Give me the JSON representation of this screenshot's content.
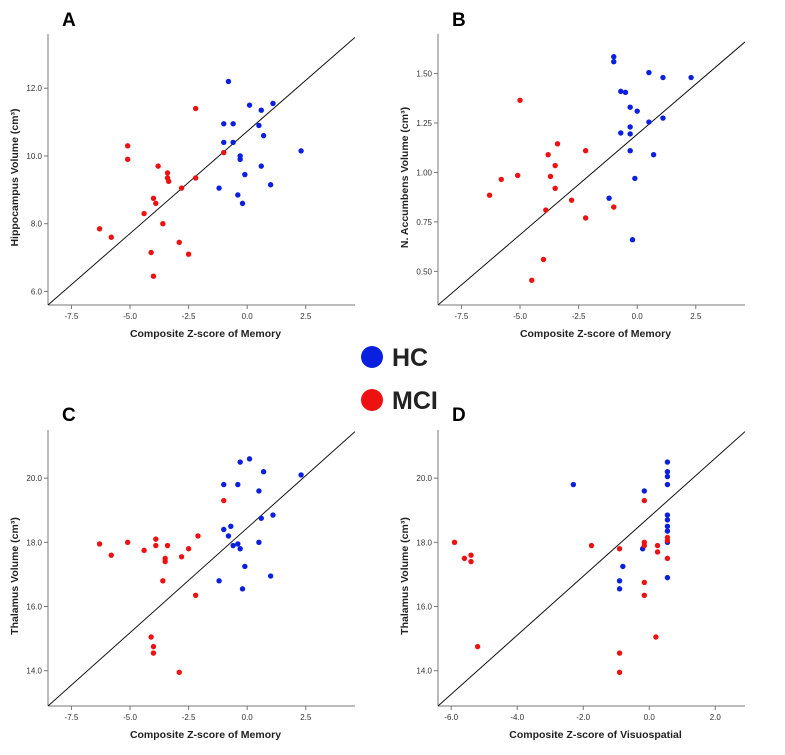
{
  "legend": {
    "items": [
      {
        "label": "HC",
        "color": "#0b1fe0"
      },
      {
        "label": "MCI",
        "color": "#ee1111"
      }
    ]
  },
  "chart_data": [
    {
      "panel": "A",
      "type": "scatter",
      "xlabel": "Composite Z-score of Memory",
      "ylabel": "Hippocampus Volume (cm³)",
      "xlim": [
        -8.5,
        4.6
      ],
      "ylim": [
        5.6,
        13.6
      ],
      "xticks": [
        -7.5,
        -5.0,
        -2.5,
        0.0,
        2.5
      ],
      "xtick_labels": [
        "-7.5",
        "-5.0",
        "-2.5",
        "0.0",
        "2.5"
      ],
      "yticks": [
        6.0,
        8.0,
        10.0,
        12.0
      ],
      "ytick_labels": [
        "6.0",
        "8.0",
        "10.0",
        "12.0"
      ],
      "ref_line": [
        [
          -8.5,
          5.6
        ],
        [
          4.6,
          13.5
        ]
      ],
      "series": [
        {
          "name": "HC",
          "points": [
            [
              -0.8,
              12.2
            ],
            [
              -1.0,
              10.95
            ],
            [
              -0.6,
              10.95
            ],
            [
              0.1,
              11.5
            ],
            [
              1.1,
              11.55
            ],
            [
              0.6,
              11.35
            ],
            [
              0.5,
              10.9
            ],
            [
              0.7,
              10.6
            ],
            [
              -1.0,
              10.4
            ],
            [
              -0.6,
              10.4
            ],
            [
              -0.3,
              10.0
            ],
            [
              -0.3,
              9.9
            ],
            [
              2.3,
              10.15
            ],
            [
              0.6,
              9.7
            ],
            [
              -0.1,
              9.45
            ],
            [
              1.0,
              9.15
            ],
            [
              -1.2,
              9.05
            ],
            [
              -0.4,
              8.85
            ],
            [
              -0.2,
              8.6
            ]
          ]
        },
        {
          "name": "MCI",
          "points": [
            [
              -2.2,
              11.4
            ],
            [
              -1.0,
              10.1
            ],
            [
              -5.1,
              10.3
            ],
            [
              -5.1,
              9.9
            ],
            [
              -3.8,
              9.7
            ],
            [
              -3.4,
              9.5
            ],
            [
              -3.4,
              9.35
            ],
            [
              -3.35,
              9.25
            ],
            [
              -2.2,
              9.35
            ],
            [
              -2.8,
              9.05
            ],
            [
              -4.0,
              8.75
            ],
            [
              -3.9,
              8.6
            ],
            [
              -4.4,
              8.3
            ],
            [
              -3.6,
              8.0
            ],
            [
              -6.3,
              7.85
            ],
            [
              -5.8,
              7.6
            ],
            [
              -2.9,
              7.45
            ],
            [
              -4.1,
              7.15
            ],
            [
              -2.5,
              7.1
            ],
            [
              -4.0,
              6.45
            ]
          ]
        }
      ]
    },
    {
      "panel": "B",
      "type": "scatter",
      "xlabel": "Composite Z-score of Memory",
      "ylabel": "N. Accumbens Volume (cm³)",
      "xlim": [
        -8.5,
        4.6
      ],
      "ylim": [
        0.33,
        1.7
      ],
      "xticks": [
        -7.5,
        -5.0,
        -2.5,
        0.0,
        2.5
      ],
      "xtick_labels": [
        "-7.5",
        "-5.0",
        "-2.5",
        "0.0",
        "2.5"
      ],
      "yticks": [
        0.5,
        0.75,
        1.0,
        1.25,
        1.5
      ],
      "ytick_labels": [
        "0.50",
        "0.75",
        "1.00",
        "1.25",
        "1.50"
      ],
      "ref_line": [
        [
          -8.5,
          0.33
        ],
        [
          4.6,
          1.66
        ]
      ],
      "series": [
        {
          "name": "HC",
          "points": [
            [
              -1.0,
              1.585
            ],
            [
              -1.0,
              1.56
            ],
            [
              0.5,
              1.505
            ],
            [
              1.1,
              1.48
            ],
            [
              2.3,
              1.48
            ],
            [
              -0.7,
              1.41
            ],
            [
              -0.5,
              1.405
            ],
            [
              -0.3,
              1.33
            ],
            [
              0.0,
              1.31
            ],
            [
              1.1,
              1.275
            ],
            [
              0.5,
              1.255
            ],
            [
              -0.3,
              1.23
            ],
            [
              -0.7,
              1.2
            ],
            [
              -0.3,
              1.195
            ],
            [
              -0.3,
              1.11
            ],
            [
              0.7,
              1.09
            ],
            [
              -0.1,
              0.97
            ],
            [
              -1.2,
              0.87
            ],
            [
              -0.2,
              0.66
            ]
          ]
        },
        {
          "name": "MCI",
          "points": [
            [
              -5.0,
              1.365
            ],
            [
              -3.4,
              1.145
            ],
            [
              -3.8,
              1.09
            ],
            [
              -2.2,
              1.11
            ],
            [
              -3.5,
              1.035
            ],
            [
              -3.7,
              0.98
            ],
            [
              -5.1,
              0.985
            ],
            [
              -5.8,
              0.965
            ],
            [
              -3.5,
              0.92
            ],
            [
              -6.3,
              0.885
            ],
            [
              -2.8,
              0.86
            ],
            [
              -1.0,
              0.825
            ],
            [
              -3.9,
              0.81
            ],
            [
              -2.2,
              0.77
            ],
            [
              -4.0,
              0.56
            ],
            [
              -4.5,
              0.455
            ]
          ]
        }
      ]
    },
    {
      "panel": "C",
      "type": "scatter",
      "xlabel": "Composite Z-score of Memory",
      "ylabel": "Thalamus Volume (cm³)",
      "xlim": [
        -8.5,
        4.6
      ],
      "ylim": [
        12.9,
        21.5
      ],
      "xticks": [
        -7.5,
        -5.0,
        -2.5,
        0.0,
        2.5
      ],
      "xtick_labels": [
        "-7.5",
        "-5.0",
        "-2.5",
        "0.0",
        "2.5"
      ],
      "yticks": [
        14.0,
        16.0,
        18.0,
        20.0
      ],
      "ytick_labels": [
        "14.0",
        "16.0",
        "18.0",
        "20.0"
      ],
      "ref_line": [
        [
          -8.5,
          12.9
        ],
        [
          4.6,
          21.45
        ]
      ],
      "series": [
        {
          "name": "HC",
          "points": [
            [
              0.1,
              20.6
            ],
            [
              -0.3,
              20.5
            ],
            [
              0.7,
              20.2
            ],
            [
              2.3,
              20.1
            ],
            [
              -1.0,
              19.8
            ],
            [
              -0.4,
              19.8
            ],
            [
              0.5,
              19.6
            ],
            [
              1.1,
              18.85
            ],
            [
              0.6,
              18.75
            ],
            [
              -0.7,
              18.5
            ],
            [
              -1.0,
              18.4
            ],
            [
              -0.8,
              18.2
            ],
            [
              -0.6,
              17.9
            ],
            [
              -0.4,
              17.95
            ],
            [
              -0.3,
              17.8
            ],
            [
              0.5,
              18.0
            ],
            [
              -0.1,
              17.25
            ],
            [
              1.0,
              16.95
            ],
            [
              -1.2,
              16.8
            ],
            [
              -0.2,
              16.55
            ]
          ]
        },
        {
          "name": "MCI",
          "points": [
            [
              -1.0,
              19.3
            ],
            [
              -2.1,
              18.2
            ],
            [
              -5.1,
              18.0
            ],
            [
              -3.9,
              18.1
            ],
            [
              -6.3,
              17.95
            ],
            [
              -3.9,
              17.9
            ],
            [
              -3.4,
              17.9
            ],
            [
              -4.4,
              17.75
            ],
            [
              -2.5,
              17.8
            ],
            [
              -5.8,
              17.6
            ],
            [
              -2.8,
              17.55
            ],
            [
              -3.5,
              17.4
            ],
            [
              -3.5,
              17.5
            ],
            [
              -3.6,
              16.8
            ],
            [
              -2.2,
              16.35
            ],
            [
              -4.1,
              15.05
            ],
            [
              -4.0,
              14.75
            ],
            [
              -4.0,
              14.55
            ],
            [
              -2.9,
              13.95
            ]
          ]
        }
      ]
    },
    {
      "panel": "D",
      "type": "scatter",
      "xlabel": "Composite Z-score of Visuospatial",
      "ylabel": "Thalamus Volume (cm³)",
      "xlim": [
        -6.4,
        2.9
      ],
      "ylim": [
        12.9,
        21.5
      ],
      "xticks": [
        -6.0,
        -4.0,
        -2.0,
        0.0,
        2.0
      ],
      "xtick_labels": [
        "-6.0",
        "-4.0",
        "-2.0",
        "0.0",
        "2.0"
      ],
      "yticks": [
        14.0,
        16.0,
        18.0,
        20.0
      ],
      "ytick_labels": [
        "14.0",
        "16.0",
        "18.0",
        "20.0"
      ],
      "ref_line": [
        [
          -6.4,
          12.9
        ],
        [
          2.9,
          21.45
        ]
      ],
      "series": [
        {
          "name": "HC",
          "points": [
            [
              0.55,
              20.5
            ],
            [
              0.55,
              20.2
            ],
            [
              0.55,
              20.05
            ],
            [
              0.55,
              19.8
            ],
            [
              -2.3,
              19.8
            ],
            [
              -0.15,
              19.6
            ],
            [
              0.55,
              18.85
            ],
            [
              0.55,
              18.7
            ],
            [
              0.55,
              18.5
            ],
            [
              0.55,
              18.35
            ],
            [
              0.55,
              18.0
            ],
            [
              -0.2,
              17.8
            ],
            [
              -0.8,
              17.25
            ],
            [
              -0.9,
              16.8
            ],
            [
              -0.9,
              16.55
            ],
            [
              0.55,
              16.9
            ]
          ]
        },
        {
          "name": "MCI",
          "points": [
            [
              -0.15,
              19.3
            ],
            [
              0.55,
              18.15
            ],
            [
              0.55,
              18.05
            ],
            [
              -5.9,
              18.0
            ],
            [
              -0.15,
              18.0
            ],
            [
              -0.15,
              17.9
            ],
            [
              0.25,
              17.9
            ],
            [
              -1.75,
              17.9
            ],
            [
              -0.9,
              17.8
            ],
            [
              0.25,
              17.7
            ],
            [
              -5.4,
              17.6
            ],
            [
              -5.6,
              17.5
            ],
            [
              -5.4,
              17.4
            ],
            [
              0.55,
              17.5
            ],
            [
              -0.15,
              16.75
            ],
            [
              -0.15,
              16.35
            ],
            [
              -5.2,
              14.75
            ],
            [
              0.2,
              15.05
            ],
            [
              -0.9,
              14.55
            ],
            [
              -0.9,
              13.95
            ]
          ]
        }
      ]
    }
  ]
}
